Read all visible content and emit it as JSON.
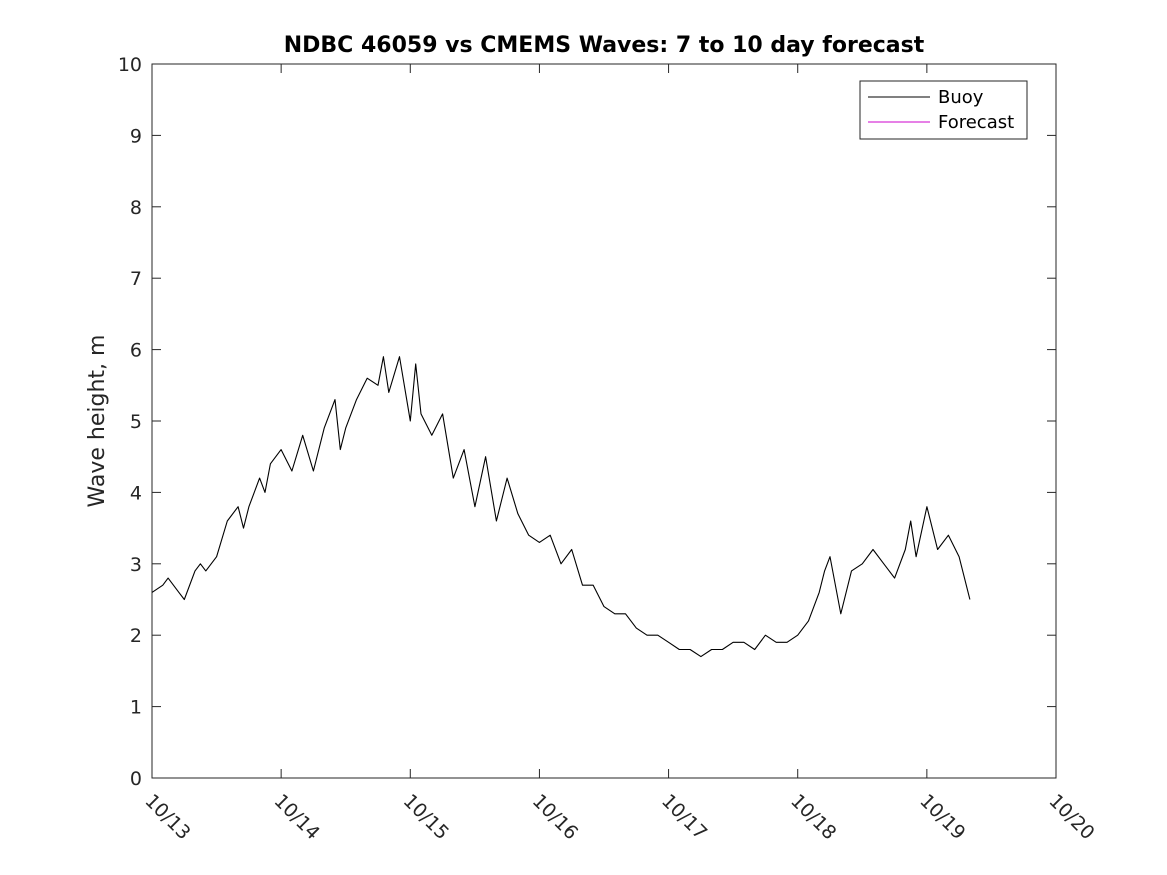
{
  "chart_data": {
    "type": "line",
    "title": "NDBC 46059 vs CMEMS Waves: 7 to 10 day forecast",
    "xlabel": "",
    "ylabel": "Wave height, m",
    "x_axis": "date",
    "xlim": [
      "10/13",
      "10/20"
    ],
    "ylim": [
      0,
      10
    ],
    "x_tick_labels": [
      "10/13",
      "10/14",
      "10/15",
      "10/16",
      "10/17",
      "10/18",
      "10/19",
      "10/20"
    ],
    "y_tick_labels": [
      "0",
      "1",
      "2",
      "3",
      "4",
      "5",
      "6",
      "7",
      "8",
      "9",
      "10"
    ],
    "grid": false,
    "legend_position": "top-right",
    "series": [
      {
        "name": "Buoy",
        "color": "#000000",
        "x": [
          "10/13 00:00",
          "10/13 02:00",
          "10/13 03:00",
          "10/13 05:00",
          "10/13 06:00",
          "10/13 08:00",
          "10/13 09:00",
          "10/13 10:00",
          "10/13 12:00",
          "10/13 14:00",
          "10/13 16:00",
          "10/13 17:00",
          "10/13 18:00",
          "10/13 20:00",
          "10/13 21:00",
          "10/13 22:00",
          "10/14 00:00",
          "10/14 02:00",
          "10/14 04:00",
          "10/14 06:00",
          "10/14 08:00",
          "10/14 10:00",
          "10/14 11:00",
          "10/14 12:00",
          "10/14 14:00",
          "10/14 16:00",
          "10/14 18:00",
          "10/14 19:00",
          "10/14 20:00",
          "10/14 22:00",
          "10/15 00:00",
          "10/15 01:00",
          "10/15 02:00",
          "10/15 04:00",
          "10/15 06:00",
          "10/15 08:00",
          "10/15 10:00",
          "10/15 12:00",
          "10/15 14:00",
          "10/15 16:00",
          "10/15 18:00",
          "10/15 20:00",
          "10/15 22:00",
          "10/16 00:00",
          "10/16 02:00",
          "10/16 04:00",
          "10/16 06:00",
          "10/16 08:00",
          "10/16 10:00",
          "10/16 12:00",
          "10/16 14:00",
          "10/16 16:00",
          "10/16 18:00",
          "10/16 20:00",
          "10/16 22:00",
          "10/17 00:00",
          "10/17 02:00",
          "10/17 04:00",
          "10/17 06:00",
          "10/17 08:00",
          "10/17 10:00",
          "10/17 12:00",
          "10/17 14:00",
          "10/17 16:00",
          "10/17 18:00",
          "10/17 20:00",
          "10/17 22:00",
          "10/18 00:00",
          "10/18 02:00",
          "10/18 03:00",
          "10/18 04:00",
          "10/18 05:00",
          "10/18 06:00",
          "10/18 08:00",
          "10/18 10:00",
          "10/18 12:00",
          "10/18 14:00",
          "10/18 16:00",
          "10/18 18:00",
          "10/18 20:00",
          "10/18 21:00",
          "10/18 22:00",
          "10/19 00:00",
          "10/19 02:00",
          "10/19 04:00",
          "10/19 06:00",
          "10/19 08:00"
        ],
        "values": [
          2.6,
          2.7,
          2.8,
          2.6,
          2.5,
          2.9,
          3.0,
          2.9,
          3.1,
          3.6,
          3.8,
          3.5,
          3.8,
          4.2,
          4.0,
          4.4,
          4.6,
          4.3,
          4.8,
          4.3,
          4.9,
          5.3,
          4.6,
          4.9,
          5.3,
          5.6,
          5.5,
          5.9,
          5.4,
          5.9,
          5.0,
          5.8,
          5.1,
          4.8,
          5.1,
          4.2,
          4.6,
          3.8,
          4.5,
          3.6,
          4.2,
          3.7,
          3.4,
          3.3,
          3.4,
          3.0,
          3.2,
          2.7,
          2.7,
          2.4,
          2.3,
          2.3,
          2.1,
          2.0,
          2.0,
          1.9,
          1.8,
          1.8,
          1.7,
          1.8,
          1.8,
          1.9,
          1.9,
          1.8,
          2.0,
          1.9,
          1.9,
          2.0,
          2.2,
          2.4,
          2.6,
          2.9,
          3.1,
          2.3,
          2.9,
          3.0,
          3.2,
          3.0,
          2.8,
          3.2,
          3.6,
          3.1,
          3.8,
          3.2,
          3.4,
          3.1,
          2.5
        ]
      },
      {
        "name": "Forecast",
        "color": "#cc00cc",
        "x": [],
        "values": []
      }
    ]
  }
}
